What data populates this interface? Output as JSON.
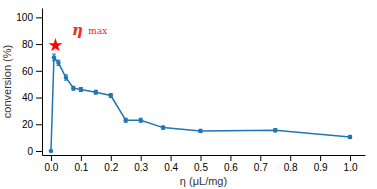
{
  "chart_data": {
    "type": "line",
    "xlabel": "η (μL/mg)",
    "ylabel": "conversion (%)",
    "xlim": [
      -0.03,
      1.05
    ],
    "ylim": [
      -3,
      107
    ],
    "xticks": [
      {
        "value": 0.0,
        "label": "0.0"
      },
      0.1,
      0.2,
      0.3,
      0.4,
      0.5,
      0.6,
      0.7,
      0.8,
      0.9,
      {
        "value": 1.0,
        "label": "1.0"
      }
    ],
    "yticks": [
      0,
      20,
      40,
      60,
      80,
      100
    ],
    "grid": false,
    "series": [
      {
        "type": "line",
        "marker": "circle",
        "x": [
          0.0,
          0.01,
          0.025,
          0.05,
          0.075,
          0.1,
          0.15,
          0.2,
          0.25,
          0.3,
          0.375,
          0.5,
          0.75,
          1.0
        ],
        "values": [
          0.0,
          70.0,
          66.0,
          55.0,
          47.0,
          46.0,
          44.0,
          41.5,
          23.0,
          23.0,
          17.5,
          15.0,
          15.5,
          10.5
        ],
        "error": [
          0,
          2.5,
          2.0,
          2.0,
          1.5,
          1.5,
          1.5,
          1.5,
          1.5,
          1.5,
          1.2,
          1.2,
          1.2,
          1.2
        ]
      },
      {
        "type": "scatter",
        "marker": "star",
        "color": "red",
        "x": [
          0.015
        ],
        "values": [
          79
        ]
      }
    ],
    "annotations": [
      {
        "text": "η",
        "x": 0.07,
        "y": 95,
        "color": "#ff2222"
      },
      {
        "text": "max",
        "x": 0.125,
        "y": 92,
        "color": "#ff2222"
      }
    ]
  }
}
